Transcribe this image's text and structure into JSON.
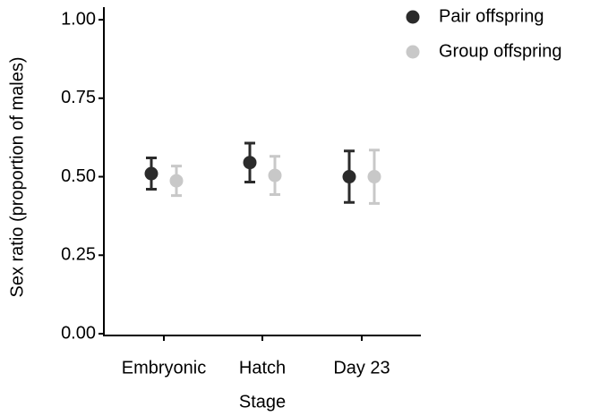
{
  "chart_data": {
    "type": "errorbar-dot",
    "x_label": "Stage",
    "y_label": "Sex ratio (proportion of males)",
    "categories": [
      "Embryonic",
      "Hatch",
      "Day 23"
    ],
    "series": [
      {
        "name": "Pair offspring",
        "color": "#2b2b2b",
        "values": [
          0.51,
          0.545,
          0.5
        ],
        "errors": [
          0.05,
          0.062,
          0.082
        ]
      },
      {
        "name": "Group offspring",
        "color": "#c8c8c8",
        "values": [
          0.487,
          0.504,
          0.5
        ],
        "errors": [
          0.047,
          0.061,
          0.085
        ]
      }
    ],
    "ylim": [
      0,
      1.04
    ],
    "yticks": [
      {
        "value": 0,
        "label": "0.00"
      },
      0.25,
      {
        "value": 0.5,
        "label": "0.50"
      },
      0.75,
      {
        "value": 1,
        "label": "1.00"
      }
    ],
    "legend": "top-right"
  }
}
